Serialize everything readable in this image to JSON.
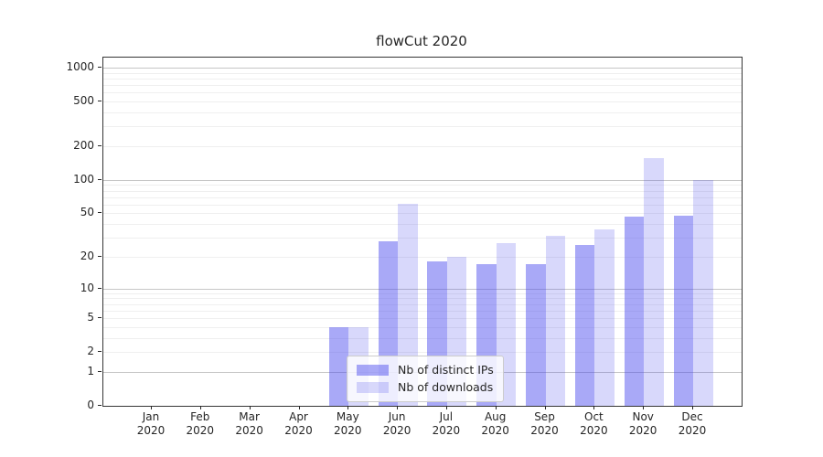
{
  "title": "flowCut 2020",
  "chart_data": {
    "type": "bar",
    "title": "flowCut 2020",
    "categories": [
      "Jan",
      "Feb",
      "Mar",
      "Apr",
      "May",
      "Jun",
      "Jul",
      "Aug",
      "Sep",
      "Oct",
      "Nov",
      "Dec"
    ],
    "category_year": "2020",
    "series": [
      {
        "name": "Nb of distinct IPs",
        "color": "rgba(76,76,238,0.48)",
        "values": [
          0,
          0,
          0,
          0,
          4,
          28,
          18,
          17,
          17,
          26,
          47,
          48
        ]
      },
      {
        "name": "Nb of downloads",
        "color": "rgba(76,76,238,0.22)",
        "values": [
          0,
          0,
          0,
          0,
          4,
          61,
          20,
          27,
          31,
          36,
          158,
          100
        ]
      }
    ],
    "xlabel": "",
    "ylabel": "",
    "y_scale": "symlog",
    "y_ticks": [
      0,
      1,
      2,
      5,
      10,
      20,
      50,
      100,
      200,
      500,
      1000
    ],
    "ylim": [
      0,
      1230
    ],
    "grid": "horizontal major and minor",
    "legend_position": "lower-center"
  },
  "colors": {
    "ips_bar": "rgba(76,76,238,0.48)",
    "downloads_bar": "rgba(76,76,238,0.22)",
    "major_grid": "#c6c6c6",
    "minor_grid": "#efefef",
    "spine": "#363636",
    "text": "#262626"
  }
}
